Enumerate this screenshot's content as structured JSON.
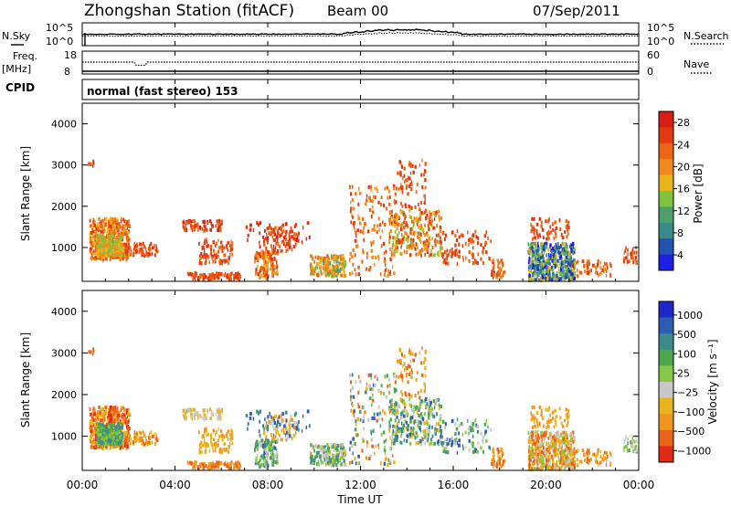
{
  "header": {
    "title": "Zhongshan Station (fitACF)",
    "beam": "Beam 00",
    "date": "07/Sep/2011"
  },
  "top_panels": {
    "nsky_label": "N.Sky",
    "nsearch_label": "N.Search",
    "count_ticks": [
      "10^5",
      "10^0"
    ],
    "freq_label": "Freq.",
    "freq_unit": "[MHz]",
    "freq_ticks": [
      "18",
      "8"
    ],
    "nave_label": "Nave",
    "nave_ticks": [
      "60",
      "0"
    ],
    "cpid_label": "CPID",
    "cpid_text": "normal (fast stereo) 153"
  },
  "chart_data": [
    {
      "type": "heatmap",
      "name": "power",
      "ylabel": "Slant Range [km]",
      "yticks": [
        1000,
        2000,
        3000,
        4000
      ],
      "ylim": [
        180,
        4500
      ],
      "xlabel": "Time UT",
      "xticks": [
        "00:00",
        "04:00",
        "08:00",
        "12:00",
        "16:00",
        "20:00",
        "00:00"
      ],
      "xlim_hours": [
        0,
        24
      ],
      "colorbar": {
        "label": "Power [dB]",
        "ticks": [
          "4",
          "8",
          "12",
          "16",
          "20",
          "24",
          "28"
        ],
        "colors": [
          "#1e1ee6",
          "#2352b0",
          "#3a8a8c",
          "#4ea06a",
          "#7fc43c",
          "#e8b41c",
          "#f08a1e",
          "#e86614",
          "#e03a0e",
          "#d81e12"
        ]
      }
    },
    {
      "type": "heatmap",
      "name": "velocity",
      "ylabel": "Slant Range [km]",
      "yticks": [
        1000,
        2000,
        3000,
        4000
      ],
      "ylim": [
        180,
        4500
      ],
      "xlabel": "Time UT",
      "xticks": [
        "00:00",
        "04:00",
        "08:00",
        "12:00",
        "16:00",
        "20:00",
        "00:00"
      ],
      "xlim_hours": [
        0,
        24
      ],
      "colorbar": {
        "label": "Velocity [m s⁻¹]",
        "ticks": [
          "1000",
          "500",
          "100",
          "25",
          "−25",
          "−100",
          "−500",
          "−1000"
        ],
        "colors": [
          "#1e28c8",
          "#2e5cb0",
          "#3c8a8c",
          "#4fa650",
          "#86c846",
          "#c8c8c8",
          "#e8b41c",
          "#f0961e",
          "#e8641a",
          "#e02c14"
        ]
      }
    }
  ]
}
